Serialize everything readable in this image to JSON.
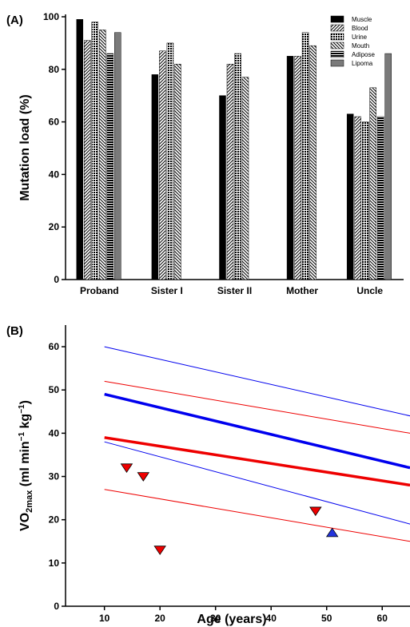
{
  "chart_data": [
    {
      "panel": "(A)",
      "type": "bar",
      "ylabel": "Mutation load (%)",
      "xlabel": "",
      "ylim": [
        0,
        100
      ],
      "yticks": [
        0,
        20,
        40,
        60,
        80,
        100
      ],
      "categories": [
        "Proband",
        "Sister I",
        "Sister II",
        "Mother",
        "Uncle"
      ],
      "legend_position": "top-right",
      "series": [
        {
          "name": "Muscle",
          "values": [
            99,
            78,
            70,
            85,
            63
          ],
          "fill": "#000000"
        },
        {
          "name": "Blood",
          "values": [
            91,
            87,
            82,
            85,
            62
          ],
          "fill": "url(#pat-blood)"
        },
        {
          "name": "Urine",
          "values": [
            98,
            90,
            86,
            94,
            60
          ],
          "fill": "url(#pat-urine)"
        },
        {
          "name": "Mouth",
          "values": [
            95,
            82,
            77,
            89,
            73
          ],
          "fill": "url(#pat-mouth)"
        },
        {
          "name": "Adipose",
          "values": [
            86,
            null,
            null,
            null,
            62
          ],
          "fill": "url(#pat-adipose)"
        },
        {
          "name": "Lipoma",
          "values": [
            94,
            null,
            null,
            null,
            86
          ],
          "fill": "#7a7a7a"
        }
      ]
    },
    {
      "panel": "(B)",
      "type": "line",
      "xlabel": "Age (years)",
      "ylabel_main": "VO",
      "ylabel_sub": "2max",
      "ylabel_rest": " (ml min",
      "ylabel_sup1": "−1",
      "ylabel_mid": " kg",
      "ylabel_sup2": "−1",
      "ylabel_end": ")",
      "xlim": [
        3,
        65
      ],
      "ylim": [
        0,
        65
      ],
      "xticks": [
        10,
        20,
        30,
        40,
        50,
        60
      ],
      "yticks": [
        0,
        10,
        20,
        30,
        40,
        50,
        60
      ],
      "lines": [
        {
          "color": "#0000ee",
          "width": 3.5,
          "points": [
            [
              10,
              49
            ],
            [
              65,
              32
            ]
          ]
        },
        {
          "color": "#0000ee",
          "width": 1,
          "points": [
            [
              10,
              60
            ],
            [
              65,
              44
            ]
          ]
        },
        {
          "color": "#0000ee",
          "width": 1,
          "points": [
            [
              10,
              38
            ],
            [
              65,
              19
            ]
          ]
        },
        {
          "color": "#ee0000",
          "width": 3.5,
          "points": [
            [
              10,
              39
            ],
            [
              65,
              28
            ]
          ]
        },
        {
          "color": "#ee0000",
          "width": 1,
          "points": [
            [
              10,
              52
            ],
            [
              65,
              40
            ]
          ]
        },
        {
          "color": "#ee0000",
          "width": 1,
          "points": [
            [
              10,
              27
            ],
            [
              65,
              15
            ]
          ]
        }
      ],
      "markers": [
        {
          "x": 14,
          "y": 32,
          "shape": "triangle-down",
          "color": "#ee0000"
        },
        {
          "x": 17,
          "y": 30,
          "shape": "triangle-down",
          "color": "#ee0000"
        },
        {
          "x": 20,
          "y": 13,
          "shape": "triangle-down",
          "color": "#ee0000"
        },
        {
          "x": 48,
          "y": 22,
          "shape": "triangle-down",
          "color": "#ee0000"
        },
        {
          "x": 51,
          "y": 17,
          "shape": "triangle-up",
          "color": "#2233dd"
        }
      ]
    }
  ]
}
